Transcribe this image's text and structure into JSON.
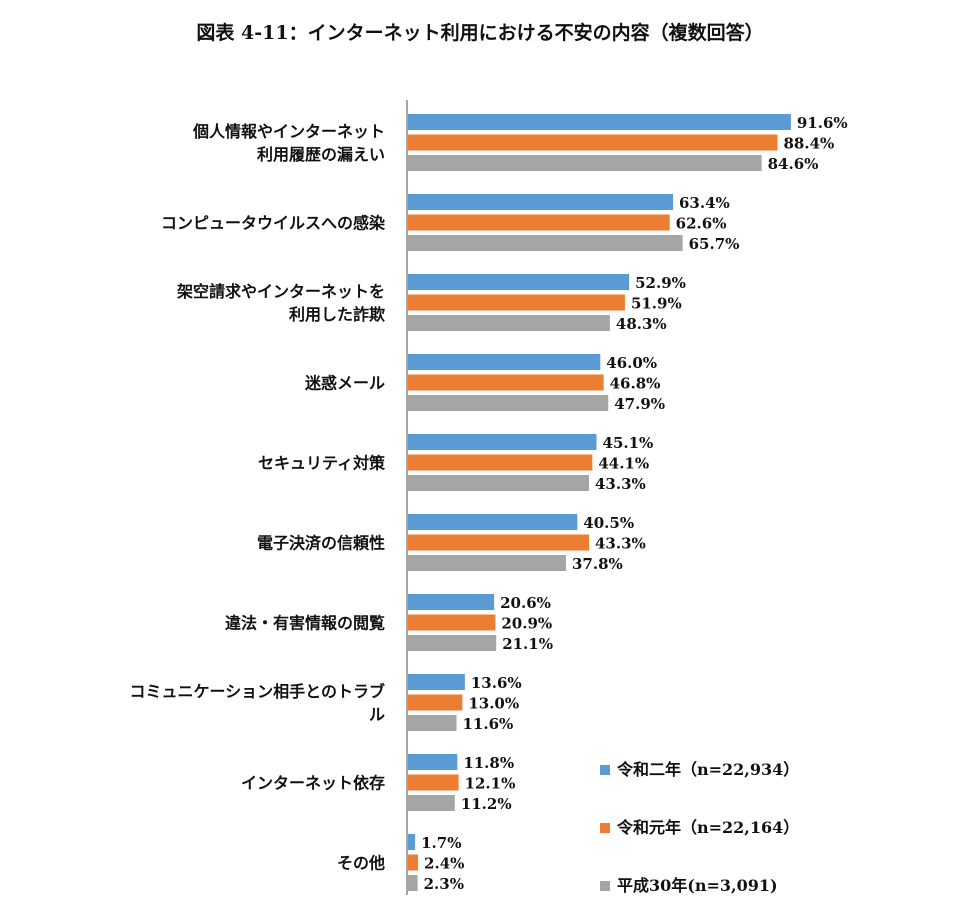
{
  "chart_data": {
    "type": "bar",
    "orientation": "horizontal",
    "title": "図表 4-11：インターネット利用における不安の内容（複数回答）",
    "categories": [
      [
        "個人情報やインターネット",
        "利用履歴の漏えい"
      ],
      [
        "コンピュータウイルスへの感染"
      ],
      [
        "架空請求やインターネットを",
        "利用した詐欺"
      ],
      [
        "迷惑メール"
      ],
      [
        "セキュリティ対策"
      ],
      [
        "電子決済の信頼性"
      ],
      [
        "違法・有害情報の閲覧"
      ],
      [
        "コミュニケーション相手とのトラブ",
        "ル"
      ],
      [
        "インターネット依存"
      ],
      [
        "その他"
      ]
    ],
    "series": [
      {
        "name": "令和二年（n=22,934）",
        "color": "#5B9BD5",
        "values": [
          91.6,
          63.4,
          52.9,
          46.0,
          45.1,
          40.5,
          20.6,
          13.6,
          11.8,
          1.7
        ]
      },
      {
        "name": "令和元年（n=22,164）",
        "color": "#ED7D31",
        "values": [
          88.4,
          62.6,
          51.9,
          46.8,
          44.1,
          43.3,
          20.9,
          13.0,
          12.1,
          2.4
        ]
      },
      {
        "name": "平成30年(n=3,091)",
        "color": "#A5A5A5",
        "values": [
          84.6,
          65.7,
          48.3,
          47.9,
          43.3,
          37.8,
          21.1,
          11.6,
          11.2,
          2.3
        ]
      }
    ],
    "value_format": "{v}%",
    "xlim": [
      0,
      100
    ],
    "grid": false,
    "legend_position": "bottom-right"
  }
}
